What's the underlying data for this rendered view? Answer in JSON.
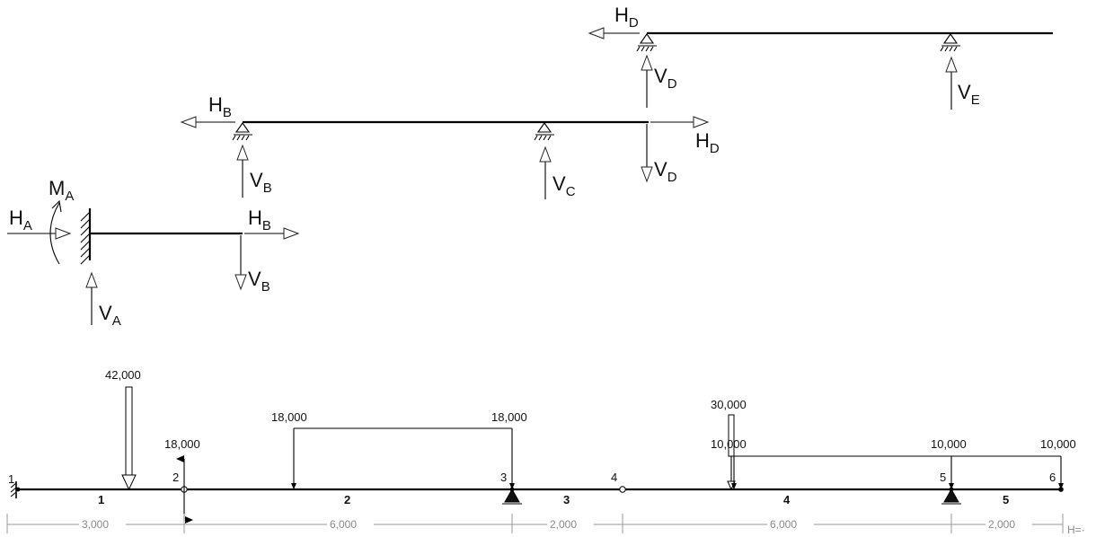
{
  "fbd": {
    "frame_a": {
      "moment": "M",
      "moment_sub": "A",
      "h_a": "H",
      "h_a_sub": "A",
      "v_a": "V",
      "v_a_sub": "A",
      "h_b": "H",
      "h_b_sub": "B",
      "v_b": "V",
      "v_b_sub": "B"
    },
    "frame_b": {
      "h_b": "H",
      "h_b_sub": "B",
      "v_b": "V",
      "v_b_sub": "B",
      "v_c": "V",
      "v_c_sub": "C",
      "h_d": "H",
      "h_d_sub": "D",
      "v_d": "V",
      "v_d_sub": "D"
    },
    "frame_d": {
      "h_d": "H",
      "h_d_sub": "D",
      "v_d": "V",
      "v_d_sub": "D",
      "v_e": "V",
      "v_e_sub": "E"
    }
  },
  "beam": {
    "nodes": [
      "1",
      "2",
      "3",
      "4",
      "5",
      "6"
    ],
    "elements": [
      "1",
      "2",
      "3",
      "4",
      "5"
    ],
    "spans": [
      "3,000",
      "6,000",
      "2,000",
      "6,000",
      "2,000"
    ],
    "end_label": "H=·",
    "loads": {
      "point_1": "42,000",
      "moment_2": "18,000",
      "dist_2_start": "18,000",
      "dist_2_end": "18,000",
      "point_4": "30,000",
      "dist_4_start": "10,000",
      "dist_4_mid": "10,000",
      "dist_4_end": "10,000"
    }
  }
}
